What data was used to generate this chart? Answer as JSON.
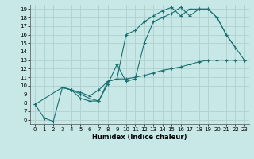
{
  "xlabel": "Humidex (Indice chaleur)",
  "bg_color": "#c8e8e8",
  "grid_color": "#b0d0d0",
  "line_color": "#1a7070",
  "xlim": [
    -0.5,
    23.5
  ],
  "ylim": [
    5.5,
    19.5
  ],
  "xticks": [
    0,
    1,
    2,
    3,
    4,
    5,
    6,
    7,
    8,
    9,
    10,
    11,
    12,
    13,
    14,
    15,
    16,
    17,
    18,
    19,
    20,
    21,
    22,
    23
  ],
  "yticks": [
    6,
    7,
    8,
    9,
    10,
    11,
    12,
    13,
    14,
    15,
    16,
    17,
    18,
    19
  ],
  "line1_x": [
    0,
    1,
    2,
    3,
    4,
    5,
    6,
    7,
    8,
    9,
    10,
    11,
    12,
    13,
    14,
    15,
    16,
    17,
    18,
    19,
    20,
    21,
    22,
    23
  ],
  "line1_y": [
    7.8,
    6.2,
    5.8,
    9.8,
    9.5,
    8.5,
    8.2,
    8.2,
    10.2,
    12.5,
    10.5,
    10.8,
    15.0,
    17.5,
    18.0,
    18.5,
    19.2,
    18.2,
    19.0,
    19.0,
    18.0,
    16.0,
    14.5,
    13.0
  ],
  "line2_x": [
    0,
    3,
    4,
    5,
    6,
    7,
    8,
    9,
    10,
    11,
    12,
    13,
    14,
    15,
    16,
    17,
    18,
    19,
    20,
    21,
    22,
    23
  ],
  "line2_y": [
    7.8,
    9.8,
    9.5,
    9.2,
    8.8,
    9.5,
    10.5,
    10.8,
    10.8,
    11.0,
    11.2,
    11.5,
    11.8,
    12.0,
    12.2,
    12.5,
    12.8,
    13.0,
    13.0,
    13.0,
    13.0,
    13.0
  ],
  "line3_x": [
    3,
    4,
    5,
    6,
    7,
    8,
    9,
    10,
    11,
    12,
    13,
    14,
    15,
    16,
    17,
    18,
    19,
    20,
    21,
    22
  ],
  "line3_y": [
    9.8,
    9.5,
    9.0,
    8.5,
    8.2,
    10.5,
    10.8,
    16.0,
    16.5,
    17.5,
    18.2,
    18.8,
    19.2,
    18.2,
    19.0,
    19.0,
    19.0,
    18.0,
    16.0,
    14.5
  ]
}
